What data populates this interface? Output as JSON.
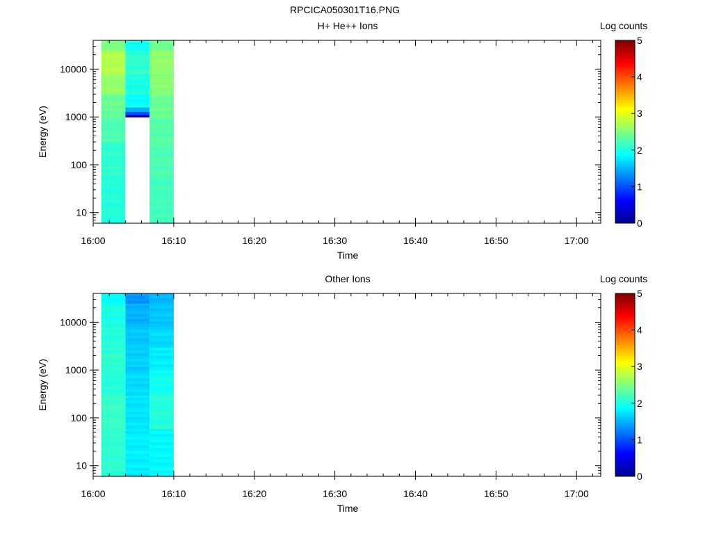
{
  "figure_title": "RPCICA050301T16.PNG",
  "colors": {
    "colormap": [
      "#00008f",
      "#0000ff",
      "#0080ff",
      "#00ffff",
      "#80ff80",
      "#ffff00",
      "#ff8000",
      "#ff0000",
      "#800000"
    ],
    "axis": "#000000",
    "background": "#ffffff"
  },
  "chart_data": [
    {
      "type": "heatmap",
      "title": "H+ He++ Ions",
      "xlabel": "Time",
      "ylabel": "Energy (eV)",
      "colorbar_label": "Log counts",
      "colorbar_range": [
        0,
        5
      ],
      "colorbar_ticks": [
        "0",
        "1",
        "2",
        "3",
        "4",
        "5"
      ],
      "x_ticks": [
        "16:00",
        "16:10",
        "16:20",
        "16:30",
        "16:40",
        "16:50",
        "17:00"
      ],
      "xlim": [
        "16:00",
        "17:03"
      ],
      "yscale": "log",
      "ylim": [
        6,
        40000
      ],
      "y_ticks": [
        "10",
        "100",
        "1000",
        "10000"
      ],
      "columns": [
        {
          "start": "16:01",
          "end": "16:04",
          "bins": [
            {
              "e_low": 6,
              "e_high": 60,
              "log_counts": 2.05
            },
            {
              "e_low": 60,
              "e_high": 300,
              "log_counts": 2.1
            },
            {
              "e_low": 300,
              "e_high": 1000,
              "log_counts": 2.25
            },
            {
              "e_low": 1000,
              "e_high": 3000,
              "log_counts": 2.4
            },
            {
              "e_low": 3000,
              "e_high": 8000,
              "log_counts": 2.6
            },
            {
              "e_low": 8000,
              "e_high": 25000,
              "log_counts": 2.75
            },
            {
              "e_low": 25000,
              "e_high": 40000,
              "log_counts": 2.5
            }
          ]
        },
        {
          "start": "16:04",
          "end": "16:07",
          "bins": [
            {
              "e_low": 1000,
              "e_high": 1100,
              "log_counts": 0.0
            },
            {
              "e_low": 1100,
              "e_high": 1300,
              "log_counts": 0.9
            },
            {
              "e_low": 1300,
              "e_high": 1600,
              "log_counts": 1.5
            },
            {
              "e_low": 1600,
              "e_high": 3000,
              "log_counts": 1.9
            },
            {
              "e_low": 3000,
              "e_high": 8000,
              "log_counts": 2.0
            },
            {
              "e_low": 8000,
              "e_high": 25000,
              "log_counts": 2.1
            },
            {
              "e_low": 25000,
              "e_high": 40000,
              "log_counts": 1.95
            }
          ]
        },
        {
          "start": "16:07",
          "end": "16:10",
          "bins": [
            {
              "e_low": 6,
              "e_high": 60,
              "log_counts": 2.2
            },
            {
              "e_low": 60,
              "e_high": 300,
              "log_counts": 2.25
            },
            {
              "e_low": 300,
              "e_high": 1000,
              "log_counts": 2.3
            },
            {
              "e_low": 1000,
              "e_high": 3000,
              "log_counts": 2.4
            },
            {
              "e_low": 3000,
              "e_high": 8000,
              "log_counts": 2.55
            },
            {
              "e_low": 8000,
              "e_high": 25000,
              "log_counts": 2.6
            },
            {
              "e_low": 25000,
              "e_high": 40000,
              "log_counts": 2.4
            }
          ]
        }
      ]
    },
    {
      "type": "heatmap",
      "title": "Other Ions",
      "xlabel": "Time",
      "ylabel": "Energy (eV)",
      "colorbar_label": "Log counts",
      "colorbar_range": [
        0,
        5
      ],
      "colorbar_ticks": [
        "0",
        "1",
        "2",
        "3",
        "4",
        "5"
      ],
      "x_ticks": [
        "16:00",
        "16:10",
        "16:20",
        "16:30",
        "16:40",
        "16:50",
        "17:00"
      ],
      "xlim": [
        "16:00",
        "17:03"
      ],
      "yscale": "log",
      "ylim": [
        6,
        40000
      ],
      "y_ticks": [
        "10",
        "100",
        "1000",
        "10000"
      ],
      "columns": [
        {
          "start": "16:01",
          "end": "16:04",
          "bins": [
            {
              "e_low": 6,
              "e_high": 60,
              "log_counts": 2.1
            },
            {
              "e_low": 60,
              "e_high": 300,
              "log_counts": 2.15
            },
            {
              "e_low": 300,
              "e_high": 1000,
              "log_counts": 2.05
            },
            {
              "e_low": 1000,
              "e_high": 3000,
              "log_counts": 2.1
            },
            {
              "e_low": 3000,
              "e_high": 8000,
              "log_counts": 2.05
            },
            {
              "e_low": 8000,
              "e_high": 25000,
              "log_counts": 2.0
            },
            {
              "e_low": 25000,
              "e_high": 40000,
              "log_counts": 1.9
            }
          ]
        },
        {
          "start": "16:04",
          "end": "16:07",
          "bins": [
            {
              "e_low": 6,
              "e_high": 60,
              "log_counts": 1.8
            },
            {
              "e_low": 60,
              "e_high": 300,
              "log_counts": 1.75
            },
            {
              "e_low": 300,
              "e_high": 1000,
              "log_counts": 1.7
            },
            {
              "e_low": 1000,
              "e_high": 3000,
              "log_counts": 1.65
            },
            {
              "e_low": 3000,
              "e_high": 8000,
              "log_counts": 1.6
            },
            {
              "e_low": 8000,
              "e_high": 25000,
              "log_counts": 1.5
            },
            {
              "e_low": 25000,
              "e_high": 40000,
              "log_counts": 1.35
            }
          ]
        },
        {
          "start": "16:07",
          "end": "16:10",
          "bins": [
            {
              "e_low": 6,
              "e_high": 60,
              "log_counts": 1.85
            },
            {
              "e_low": 60,
              "e_high": 300,
              "log_counts": 2.05
            },
            {
              "e_low": 300,
              "e_high": 1000,
              "log_counts": 1.95
            },
            {
              "e_low": 1000,
              "e_high": 3000,
              "log_counts": 1.8
            },
            {
              "e_low": 3000,
              "e_high": 8000,
              "log_counts": 1.7
            },
            {
              "e_low": 8000,
              "e_high": 25000,
              "log_counts": 1.6
            },
            {
              "e_low": 25000,
              "e_high": 40000,
              "log_counts": 1.5
            }
          ]
        }
      ]
    }
  ]
}
